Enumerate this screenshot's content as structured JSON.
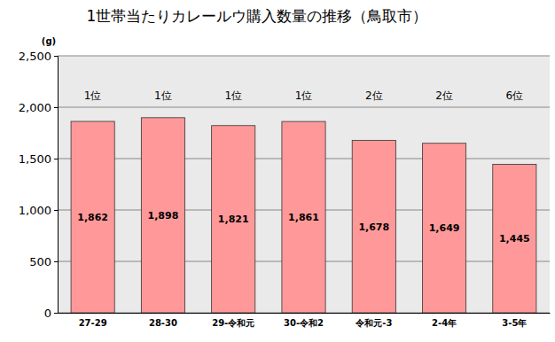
{
  "chart_data": {
    "type": "bar",
    "title": "1世帯当たりカレールウ購入数量の推移（鳥取市）",
    "y_label": "(g)",
    "categories": [
      "27-29",
      "28-30",
      "29-令和元",
      "30-令和2",
      "令和元-3",
      "2-4年",
      "3-5年"
    ],
    "values": [
      1862,
      1898,
      1821,
      1861,
      1678,
      1649,
      1445
    ],
    "value_labels": [
      "1,862",
      "1,898",
      "1,821",
      "1,861",
      "1,678",
      "1,649",
      "1,445"
    ],
    "annotations": [
      "1位",
      "1位",
      "1位",
      "1位",
      "2位",
      "2位",
      "6位"
    ],
    "color": "#ff9999",
    "ylim": [
      0,
      2500
    ],
    "yticks": [
      0,
      500,
      {
        "value": 1000,
        "label": "1,000"
      },
      {
        "value": 1500,
        "label": "1,500"
      },
      {
        "value": 2000,
        "label": "2,000"
      },
      {
        "value": 2500,
        "label": "2,500"
      }
    ],
    "grid": true,
    "data_labels": true
  }
}
